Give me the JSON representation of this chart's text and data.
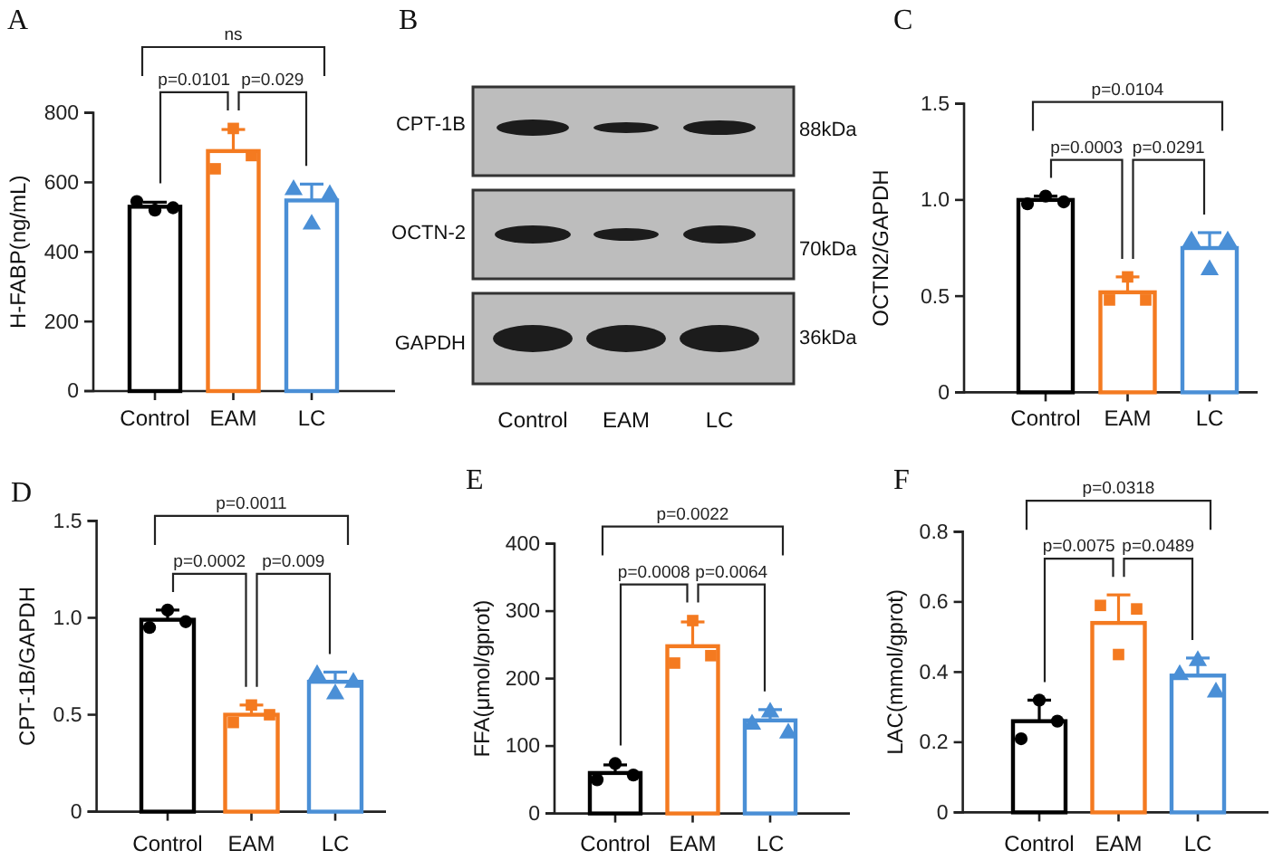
{
  "chart_data": [
    {
      "type": "bar",
      "title": "A",
      "ylabel": "H-FABP(ng/mL)",
      "categories": [
        "Control",
        "EAM",
        "LC"
      ],
      "ylim": [
        0,
        800
      ],
      "yticks": [
        0,
        200,
        400,
        600,
        800
      ],
      "annotations": [
        "p=0.0101",
        "p=0.029",
        "ns"
      ],
      "series": [
        {
          "type": "bar",
          "values": [
            530,
            690,
            548
          ],
          "colors": [
            "#000000",
            "#f47a20",
            "#4a8fd6"
          ],
          "errors": [
            [
              530,
              543
            ],
            [
              690,
              752
            ],
            [
              548,
              595
            ]
          ]
        },
        {
          "type": "scatter",
          "x": [
            "Control",
            "Control",
            "Control"
          ],
          "values": [
            545,
            520,
            527
          ],
          "color": "#000000",
          "marker": "circle"
        },
        {
          "type": "scatter",
          "x": [
            "EAM",
            "EAM",
            "EAM"
          ],
          "values": [
            639,
            755,
            677
          ],
          "color": "#f47a20",
          "marker": "square"
        },
        {
          "type": "scatter",
          "x": [
            "LC",
            "LC",
            "LC"
          ],
          "values": [
            586,
            487,
            572
          ],
          "color": "#4a8fd6",
          "marker": "triangle"
        }
      ]
    },
    {
      "type": "other",
      "title": "B",
      "categories": [
        "Control",
        "EAM",
        "LC"
      ],
      "annotations": [
        "CPT-1B",
        "OCTN-2",
        "GAPDH",
        "88kDa",
        "70kDa",
        "36kDa"
      ]
    },
    {
      "type": "bar",
      "title": "C",
      "ylabel": "OCTN2/GAPDH",
      "categories": [
        "Control",
        "EAM",
        "LC"
      ],
      "ylim": [
        0,
        1.5
      ],
      "yticks": [
        0,
        0.5,
        {
          "value": 1,
          "label": "1.0"
        },
        1.5
      ],
      "annotations": [
        "p=0.0003",
        "p=0.0291",
        "p=0.0104"
      ],
      "series": [
        {
          "type": "bar",
          "values": [
            1.0,
            0.52,
            0.75
          ],
          "colors": [
            "#000000",
            "#f47a20",
            "#4a8fd6"
          ],
          "errors": [
            [
              1.0,
              1.02
            ],
            [
              0.52,
              0.6
            ],
            [
              0.75,
              0.83
            ]
          ]
        },
        {
          "type": "scatter",
          "x": [
            "Control",
            "Control",
            "Control"
          ],
          "values": [
            0.98,
            1.02,
            0.99
          ],
          "color": "#000000",
          "marker": "circle"
        },
        {
          "type": "scatter",
          "x": [
            "EAM",
            "EAM",
            "EAM"
          ],
          "values": [
            0.48,
            0.6,
            0.48
          ],
          "color": "#f47a20",
          "marker": "square"
        },
        {
          "type": "scatter",
          "x": [
            "LC",
            "LC",
            "LC"
          ],
          "values": [
            0.8,
            0.65,
            0.8
          ],
          "color": "#4a8fd6",
          "marker": "triangle"
        }
      ]
    },
    {
      "type": "bar",
      "title": "D",
      "ylabel": "CPT-1B/GAPDH",
      "categories": [
        "Control",
        "EAM",
        "LC"
      ],
      "ylim": [
        0,
        1.5
      ],
      "yticks": [
        0,
        0.5,
        {
          "value": 1,
          "label": "1.0"
        },
        1.5
      ],
      "annotations": [
        "p=0.0002",
        "p=0.009",
        "p=0.0011"
      ],
      "series": [
        {
          "type": "bar",
          "values": [
            0.99,
            0.5,
            0.67
          ],
          "colors": [
            "#000000",
            "#f47a20",
            "#4a8fd6"
          ],
          "errors": [
            [
              0.99,
              1.04
            ],
            [
              0.5,
              0.55
            ],
            [
              0.67,
              0.72
            ]
          ]
        },
        {
          "type": "scatter",
          "x": [
            "Control",
            "Control",
            "Control"
          ],
          "values": [
            0.95,
            1.04,
            0.98
          ],
          "color": "#000000",
          "marker": "circle"
        },
        {
          "type": "scatter",
          "x": [
            "EAM",
            "EAM",
            "EAM"
          ],
          "values": [
            0.46,
            0.55,
            0.5
          ],
          "color": "#f47a20",
          "marker": "square"
        },
        {
          "type": "scatter",
          "x": [
            "LC",
            "LC",
            "LC"
          ],
          "values": [
            0.72,
            0.62,
            0.68
          ],
          "color": "#4a8fd6",
          "marker": "triangle"
        }
      ]
    },
    {
      "type": "bar",
      "title": "E",
      "ylabel": "FFA(μmol/gprot)",
      "categories": [
        "Control",
        "EAM",
        "LC"
      ],
      "ylim": [
        0,
        400
      ],
      "yticks": [
        0,
        100,
        200,
        300,
        400
      ],
      "annotations": [
        "p=0.0008",
        "p=0.0064",
        "p=0.0022"
      ],
      "series": [
        {
          "type": "bar",
          "values": [
            60,
            248,
            138
          ],
          "colors": [
            "#000000",
            "#f47a20",
            "#4a8fd6"
          ],
          "errors": [
            [
              60,
              72
            ],
            [
              248,
              284
            ],
            [
              138,
              154
            ]
          ]
        },
        {
          "type": "scatter",
          "x": [
            "Control",
            "Control",
            "Control"
          ],
          "values": [
            50,
            74,
            57
          ],
          "color": "#000000",
          "marker": "circle"
        },
        {
          "type": "scatter",
          "x": [
            "EAM",
            "EAM",
            "EAM"
          ],
          "values": [
            223,
            286,
            234
          ],
          "color": "#f47a20",
          "marker": "square"
        },
        {
          "type": "scatter",
          "x": [
            "LC",
            "LC",
            "LC"
          ],
          "values": [
            136,
            154,
            123
          ],
          "color": "#4a8fd6",
          "marker": "triangle"
        }
      ]
    },
    {
      "type": "bar",
      "title": "F",
      "ylabel": "LAC(mmol/gprot)",
      "categories": [
        "Control",
        "EAM",
        "LC"
      ],
      "ylim": [
        0,
        0.8
      ],
      "yticks": [
        0,
        0.2,
        0.4,
        0.6,
        0.8
      ],
      "annotations": [
        "p=0.0075",
        "p=0.0489",
        "p=0.0318"
      ],
      "series": [
        {
          "type": "bar",
          "values": [
            0.26,
            0.54,
            0.39
          ],
          "colors": [
            "#000000",
            "#f47a20",
            "#4a8fd6"
          ],
          "errors": [
            [
              0.26,
              0.32
            ],
            [
              0.54,
              0.62
            ],
            [
              0.39,
              0.44
            ]
          ]
        },
        {
          "type": "scatter",
          "x": [
            "Control",
            "Control",
            "Control"
          ],
          "values": [
            0.21,
            0.32,
            0.26
          ],
          "color": "#000000",
          "marker": "circle"
        },
        {
          "type": "scatter",
          "x": [
            "EAM",
            "EAM",
            "EAM"
          ],
          "values": [
            0.59,
            0.45,
            0.58
          ],
          "color": "#f47a20",
          "marker": "square"
        },
        {
          "type": "scatter",
          "x": [
            "LC",
            "LC",
            "LC"
          ],
          "values": [
            0.4,
            0.44,
            0.35
          ],
          "color": "#4a8fd6",
          "marker": "triangle"
        }
      ]
    }
  ]
}
